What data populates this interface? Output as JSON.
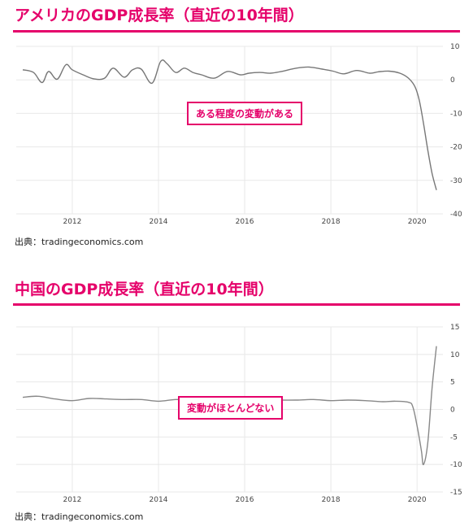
{
  "chart_data": [
    {
      "type": "line",
      "title": "アメリカのGDP成長率（直近の10年間）",
      "xlabel": "",
      "ylabel": "",
      "xlim": [
        2010.7,
        2020.6
      ],
      "ylim": [
        -40,
        10
      ],
      "x_ticks": [
        "2012",
        "2014",
        "2016",
        "2018",
        "2020"
      ],
      "y_ticks": [
        "10",
        "0",
        "-10",
        "-20",
        "-30",
        "-40"
      ],
      "grid": true,
      "line_color": "#777777",
      "annotation": "ある程度の変動がある",
      "source": "出典：tradingeconomics.com",
      "series": [
        {
          "x": [
            2010.85,
            2011.1,
            2011.3,
            2011.45,
            2011.65,
            2011.85,
            2012.0,
            2012.25,
            2012.5,
            2012.75,
            2012.95,
            2013.2,
            2013.4,
            2013.6,
            2013.85,
            2014.05,
            2014.2,
            2014.4,
            2014.6,
            2014.8,
            2015.0,
            2015.3,
            2015.6,
            2015.9,
            2016.1,
            2016.35,
            2016.6,
            2016.85,
            2017.2,
            2017.5,
            2017.8,
            2018.05,
            2018.3,
            2018.6,
            2018.9,
            2019.1,
            2019.35,
            2019.6,
            2019.8,
            2019.95,
            2020.05,
            2020.15,
            2020.25,
            2020.35,
            2020.45
          ],
          "y": [
            3.0,
            2.2,
            -0.8,
            2.5,
            0.2,
            4.5,
            3.0,
            1.5,
            0.3,
            0.5,
            3.5,
            0.8,
            3.0,
            3.2,
            -1.0,
            5.5,
            4.8,
            2.2,
            3.5,
            2.2,
            1.5,
            0.5,
            2.5,
            1.5,
            2.0,
            2.2,
            2.0,
            2.5,
            3.5,
            3.8,
            3.2,
            2.6,
            1.8,
            2.8,
            2.0,
            2.4,
            2.6,
            2.0,
            0.5,
            -2.0,
            -6.0,
            -13.0,
            -21.0,
            -28.0,
            -32.9
          ]
        }
      ]
    },
    {
      "type": "line",
      "title": "中国のGDP成長率（直近の10年間）",
      "xlabel": "",
      "ylabel": "",
      "xlim": [
        2010.7,
        2020.6
      ],
      "ylim": [
        -15,
        15
      ],
      "x_ticks": [
        "2012",
        "2014",
        "2016",
        "2018",
        "2020"
      ],
      "y_ticks": [
        "15",
        "10",
        "5",
        "0",
        "-5",
        "-10",
        "-15"
      ],
      "grid": true,
      "line_color": "#888888",
      "annotation": "変動がほとんどない",
      "source": "出典：tradingeconomics.com",
      "series": [
        {
          "x": [
            2010.85,
            2011.2,
            2011.6,
            2012.0,
            2012.4,
            2012.8,
            2013.2,
            2013.6,
            2014.0,
            2014.4,
            2014.8,
            2015.2,
            2015.6,
            2016.0,
            2016.4,
            2016.8,
            2017.2,
            2017.6,
            2018.0,
            2018.4,
            2018.8,
            2019.2,
            2019.5,
            2019.8,
            2019.9,
            2020.0,
            2020.1,
            2020.15,
            2020.25,
            2020.35,
            2020.45
          ],
          "y": [
            2.2,
            2.4,
            1.9,
            1.6,
            2.0,
            1.9,
            1.8,
            1.8,
            1.5,
            1.8,
            1.7,
            1.7,
            1.8,
            1.6,
            1.8,
            1.7,
            1.7,
            1.8,
            1.6,
            1.7,
            1.6,
            1.4,
            1.5,
            1.3,
            0.5,
            -3.0,
            -7.5,
            -10.0,
            -6.0,
            4.0,
            11.5
          ]
        }
      ]
    }
  ]
}
